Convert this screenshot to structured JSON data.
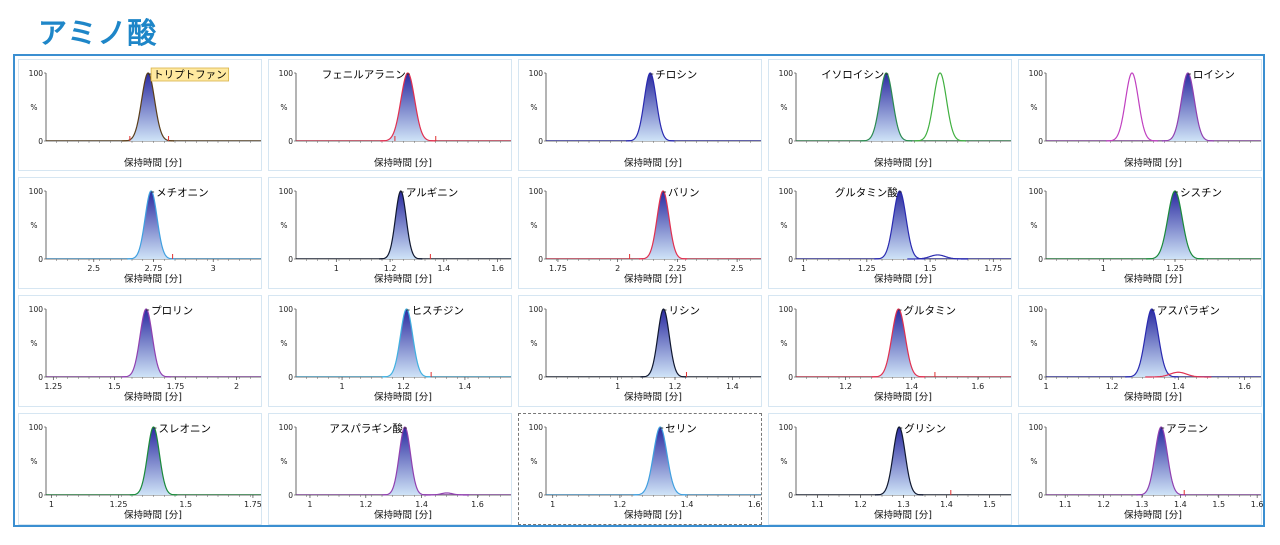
{
  "page": {
    "title": "アミノ酸",
    "accent_color": "#1e86c8",
    "frame_color": "#3b8fd1"
  },
  "xlabel": "保持時間 [分]",
  "ylabel": "%",
  "chart_data": [
    {
      "type": "line",
      "name": "トリプトファン",
      "label_highlighted": true,
      "xlim": [
        0,
        10
      ],
      "xticks": [],
      "ylim": [
        0,
        100
      ],
      "yticks": [
        "0",
        "100"
      ],
      "series": [
        {
          "name": "primary",
          "color": "#5a3e1a",
          "peak_x": 4.75,
          "width": 0.3,
          "height": 100
        }
      ],
      "markers": [
        3.9,
        5.7
      ]
    },
    {
      "type": "line",
      "name": "フェニルアラニン",
      "xlim": [
        0,
        10
      ],
      "xticks": [],
      "ylim": [
        0,
        100
      ],
      "yticks": [
        "0",
        "100"
      ],
      "series": [
        {
          "name": "primary",
          "color": "#e03050",
          "peak_x": 5.2,
          "width": 0.32,
          "height": 100
        }
      ],
      "markers": [
        4.6,
        6.5
      ]
    },
    {
      "type": "line",
      "name": "チロシン",
      "xlim": [
        0,
        10
      ],
      "xticks": [],
      "ylim": [
        0,
        100
      ],
      "yticks": [
        "0",
        "100"
      ],
      "series": [
        {
          "name": "primary",
          "color": "#2a2ab0",
          "peak_x": 4.85,
          "width": 0.28,
          "height": 100
        }
      ],
      "markers": []
    },
    {
      "type": "line",
      "name": "イソロイシン",
      "xlim": [
        0,
        10
      ],
      "xticks": [],
      "ylim": [
        0,
        100
      ],
      "yticks": [
        "0",
        "100"
      ],
      "series": [
        {
          "name": "primary",
          "color": "#2a8a50",
          "peak_x": 4.2,
          "width": 0.3,
          "height": 100
        },
        {
          "name": "secondary",
          "color": "#40b040",
          "peak_x": 6.7,
          "width": 0.3,
          "height": 100,
          "filled": false
        }
      ],
      "markers": []
    },
    {
      "type": "line",
      "name": "ロイシン",
      "xlim": [
        0,
        10
      ],
      "xticks": [],
      "ylim": [
        0,
        100
      ],
      "yticks": [
        "0",
        "100"
      ],
      "series": [
        {
          "name": "primary",
          "color": "#9040b0",
          "peak_x": 6.6,
          "width": 0.3,
          "height": 100
        },
        {
          "name": "secondary",
          "color": "#c040c0",
          "peak_x": 4.0,
          "width": 0.3,
          "height": 100,
          "filled": false
        }
      ],
      "markers": []
    },
    {
      "type": "line",
      "name": "メチオニン",
      "xlim": [
        2.3,
        3.2
      ],
      "xticks": [
        "2.5",
        "2.75",
        "3"
      ],
      "ylim": [
        0,
        100
      ],
      "yticks": [
        "0",
        "100"
      ],
      "series": [
        {
          "name": "primary",
          "color": "#40a0e0",
          "peak_x": 2.74,
          "width": 0.025,
          "height": 100
        }
      ],
      "markers": [
        2.83
      ]
    },
    {
      "type": "line",
      "name": "アルギニン",
      "xlim": [
        0.85,
        1.65
      ],
      "xticks": [
        "1",
        "1.2",
        "1.4",
        "1.6"
      ],
      "ylim": [
        0,
        100
      ],
      "yticks": [
        "0",
        "100"
      ],
      "series": [
        {
          "name": "primary",
          "color": "#101830",
          "peak_x": 1.24,
          "width": 0.02,
          "height": 100
        }
      ],
      "markers": [
        1.35
      ]
    },
    {
      "type": "line",
      "name": "バリン",
      "xlim": [
        1.7,
        2.6
      ],
      "xticks": [
        "1.75",
        "2",
        "2.25",
        "2.5"
      ],
      "ylim": [
        0,
        100
      ],
      "yticks": [
        "0",
        "100"
      ],
      "series": [
        {
          "name": "primary",
          "color": "#e03050",
          "peak_x": 2.19,
          "width": 0.025,
          "height": 100
        }
      ],
      "markers": [
        2.05
      ]
    },
    {
      "type": "line",
      "name": "グルタミン酸",
      "xlim": [
        0.97,
        1.82
      ],
      "xticks": [
        "1",
        "1.25",
        "1.5",
        "1.75"
      ],
      "ylim": [
        0,
        100
      ],
      "yticks": [
        "0",
        "100"
      ],
      "series": [
        {
          "name": "primary",
          "color": "#2a2ab0",
          "peak_x": 1.38,
          "width": 0.025,
          "height": 100
        },
        {
          "name": "secondary",
          "color": "#2a2ab0",
          "peak_x": 1.53,
          "width": 0.03,
          "height": 6,
          "filled": false
        }
      ],
      "markers": []
    },
    {
      "type": "line",
      "name": "シスチン",
      "xlim": [
        0.8,
        1.55
      ],
      "xticks": [
        "1",
        "1.25"
      ],
      "ylim": [
        0,
        100
      ],
      "yticks": [
        "0",
        "100"
      ],
      "series": [
        {
          "name": "primary",
          "color": "#1a8a3a",
          "peak_x": 1.25,
          "width": 0.025,
          "height": 100
        }
      ],
      "markers": []
    },
    {
      "type": "line",
      "name": "プロリン",
      "xlim": [
        1.22,
        2.1
      ],
      "xticks": [
        "1.25",
        "1.5",
        "1.75",
        "2"
      ],
      "ylim": [
        0,
        100
      ],
      "yticks": [
        "0",
        "100"
      ],
      "series": [
        {
          "name": "primary",
          "color": "#9040b0",
          "peak_x": 1.63,
          "width": 0.025,
          "height": 100
        }
      ],
      "markers": []
    },
    {
      "type": "line",
      "name": "ヒスチジン",
      "xlim": [
        0.85,
        1.55
      ],
      "xticks": [
        "1",
        "1.2",
        "1.4"
      ],
      "ylim": [
        0,
        100
      ],
      "yticks": [
        "0",
        "100"
      ],
      "series": [
        {
          "name": "primary",
          "color": "#40b0e0",
          "peak_x": 1.21,
          "width": 0.02,
          "height": 100
        }
      ],
      "markers": [
        1.29
      ]
    },
    {
      "type": "line",
      "name": "リシン",
      "xlim": [
        0.75,
        1.5
      ],
      "xticks": [
        "1",
        "1.2",
        "1.4"
      ],
      "ylim": [
        0,
        100
      ],
      "yticks": [
        "0",
        "100"
      ],
      "series": [
        {
          "name": "primary",
          "color": "#101830",
          "peak_x": 1.16,
          "width": 0.02,
          "height": 100
        }
      ],
      "markers": [
        1.24
      ]
    },
    {
      "type": "line",
      "name": "グルタミン",
      "xlim": [
        1.05,
        1.7
      ],
      "xticks": [
        "1.2",
        "1.4",
        "1.6"
      ],
      "ylim": [
        0,
        100
      ],
      "yticks": [
        "0",
        "100"
      ],
      "series": [
        {
          "name": "primary",
          "color": "#e03050",
          "peak_x": 1.36,
          "width": 0.02,
          "height": 100
        }
      ],
      "markers": [
        1.47
      ]
    },
    {
      "type": "line",
      "name": "アスパラギン",
      "xlim": [
        1.0,
        1.65
      ],
      "xticks": [
        "1",
        "1.2",
        "1.4",
        "1.6"
      ],
      "ylim": [
        0,
        100
      ],
      "yticks": [
        "0",
        "100"
      ],
      "series": [
        {
          "name": "primary",
          "color": "#2a2ab0",
          "peak_x": 1.32,
          "width": 0.02,
          "height": 100
        },
        {
          "name": "secondary",
          "color": "#e03050",
          "peak_x": 1.4,
          "width": 0.025,
          "height": 7,
          "filled": false
        }
      ],
      "markers": []
    },
    {
      "type": "line",
      "name": "スレオニン",
      "xlim": [
        0.98,
        1.78
      ],
      "xticks": [
        "1",
        "1.25",
        "1.5",
        "1.75"
      ],
      "ylim": [
        0,
        100
      ],
      "yticks": [
        "0",
        "100"
      ],
      "series": [
        {
          "name": "primary",
          "color": "#1a8a3a",
          "peak_x": 1.38,
          "width": 0.022,
          "height": 100
        }
      ],
      "markers": []
    },
    {
      "type": "line",
      "name": "アスパラギン酸",
      "xlim": [
        0.95,
        1.72
      ],
      "xticks": [
        "1",
        "1.2",
        "1.4",
        "1.6"
      ],
      "ylim": [
        0,
        100
      ],
      "yticks": [
        "0",
        "100"
      ],
      "series": [
        {
          "name": "primary",
          "color": "#9040b0",
          "peak_x": 1.34,
          "width": 0.02,
          "height": 100
        },
        {
          "name": "secondary",
          "color": "#9040b0",
          "peak_x": 1.49,
          "width": 0.02,
          "height": 3,
          "filled": false
        }
      ],
      "markers": []
    },
    {
      "type": "line",
      "name": "セリン",
      "xlim": [
        0.98,
        1.62
      ],
      "xticks": [
        "1",
        "1.2",
        "1.4",
        "1.6"
      ],
      "ylim": [
        0,
        100
      ],
      "yticks": [
        "0",
        "100"
      ],
      "series": [
        {
          "name": "primary",
          "color": "#40a0e0",
          "peak_x": 1.32,
          "width": 0.02,
          "height": 100
        }
      ],
      "markers": []
    },
    {
      "type": "line",
      "name": "グリシン",
      "xlim": [
        1.05,
        1.55
      ],
      "xticks": [
        "1.1",
        "1.2",
        "1.3",
        "1.4",
        "1.5"
      ],
      "ylim": [
        0,
        100
      ],
      "yticks": [
        "0",
        "100"
      ],
      "series": [
        {
          "name": "primary",
          "color": "#101830",
          "peak_x": 1.29,
          "width": 0.014,
          "height": 100
        }
      ],
      "markers": [
        1.41
      ]
    },
    {
      "type": "line",
      "name": "アラニン",
      "xlim": [
        1.05,
        1.61
      ],
      "xticks": [
        "1.1",
        "1.2",
        "1.3",
        "1.4",
        "1.5",
        "1.6"
      ],
      "ylim": [
        0,
        100
      ],
      "yticks": [
        "0",
        "100"
      ],
      "series": [
        {
          "name": "primary",
          "color": "#9040b0",
          "peak_x": 1.35,
          "width": 0.016,
          "height": 100
        }
      ],
      "markers": [
        1.41
      ]
    }
  ]
}
